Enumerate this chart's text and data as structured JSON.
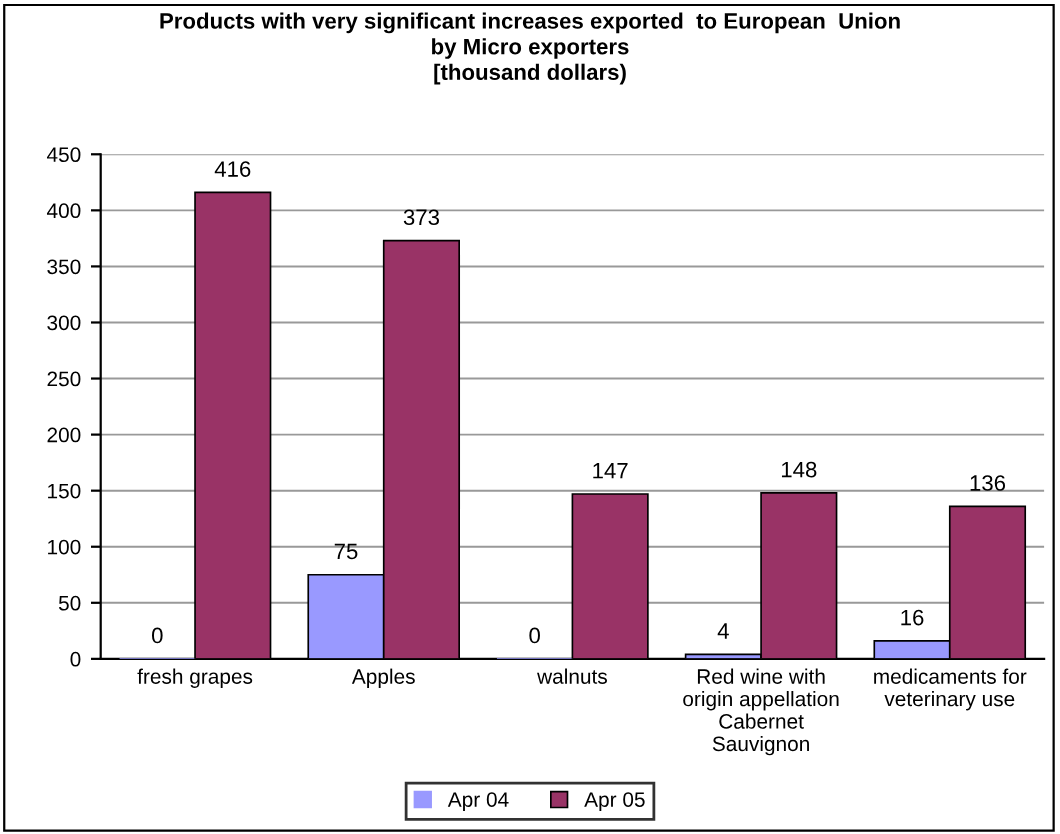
{
  "chart_data": {
    "type": "bar",
    "title": "Products with very significant increases exported  to European  Union\nby Micro exporters\n[thousand dollars)",
    "categories": [
      "fresh grapes",
      "Apples",
      "walnuts",
      "Red wine with\norigin appellation\nCabernet\nSauvignon",
      "medicaments for\nveterinary use"
    ],
    "series": [
      {
        "name": "Apr 04",
        "color": "#9999ff",
        "values": [
          0,
          75,
          0,
          4,
          16
        ]
      },
      {
        "name": "Apr 05",
        "color": "#993366",
        "values": [
          416,
          373,
          147,
          148,
          136
        ]
      }
    ],
    "ylim": [
      0,
      450
    ],
    "yticks": [
      0,
      50,
      100,
      150,
      200,
      250,
      300,
      350,
      400,
      450
    ],
    "grid": "y",
    "legend": "bottom",
    "data_labels": true
  }
}
